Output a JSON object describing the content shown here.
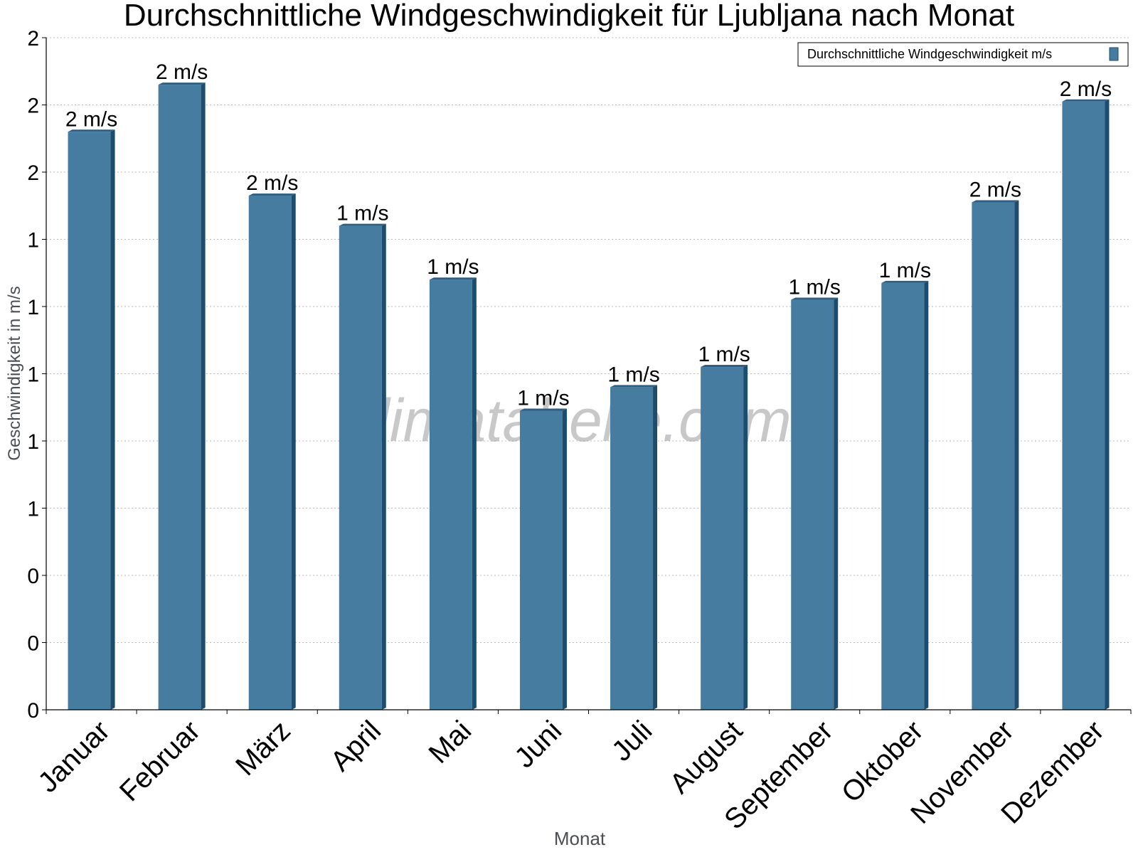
{
  "chart_data": {
    "type": "bar",
    "title": "Durchschnittliche Windgeschwindigkeit für Ljubljana nach Monat",
    "xlabel": "Monat",
    "ylabel": "Geschwindigkeit in m/s",
    "categories": [
      "Januar",
      "Februar",
      "März",
      "April",
      "Mai",
      "Juni",
      "Juli",
      "August",
      "September",
      "Oktober",
      "November",
      "Dezember"
    ],
    "series": [
      {
        "name": "Durchschnittliche Windgeschwindigkeit m/s",
        "values": [
          1.72,
          1.86,
          1.53,
          1.44,
          1.28,
          0.89,
          0.96,
          1.02,
          1.22,
          1.27,
          1.51,
          1.81
        ],
        "data_labels": [
          "2 m/s",
          "2 m/s",
          "2 m/s",
          "1 m/s",
          "1 m/s",
          "1 m/s",
          "1 m/s",
          "1 m/s",
          "1 m/s",
          "1 m/s",
          "2 m/s",
          "2 m/s"
        ],
        "color": "#467c9f"
      }
    ],
    "ylim": [
      0,
      2.0
    ],
    "yticks": [
      0,
      0.2,
      0.4,
      0.6,
      0.8,
      1.0,
      1.2,
      1.4,
      1.6,
      1.8,
      2.0
    ],
    "ytick_labels": [
      "0",
      "0",
      "0",
      "1",
      "1",
      "1",
      "1",
      "1",
      "2",
      "2",
      "2"
    ],
    "grid": true,
    "legend": "top-right",
    "watermark": "klimatabelle.com",
    "colors": {
      "bar": "#467c9f",
      "bar_side": "#1d4d6e",
      "bar_top": "#2e5f82"
    }
  }
}
